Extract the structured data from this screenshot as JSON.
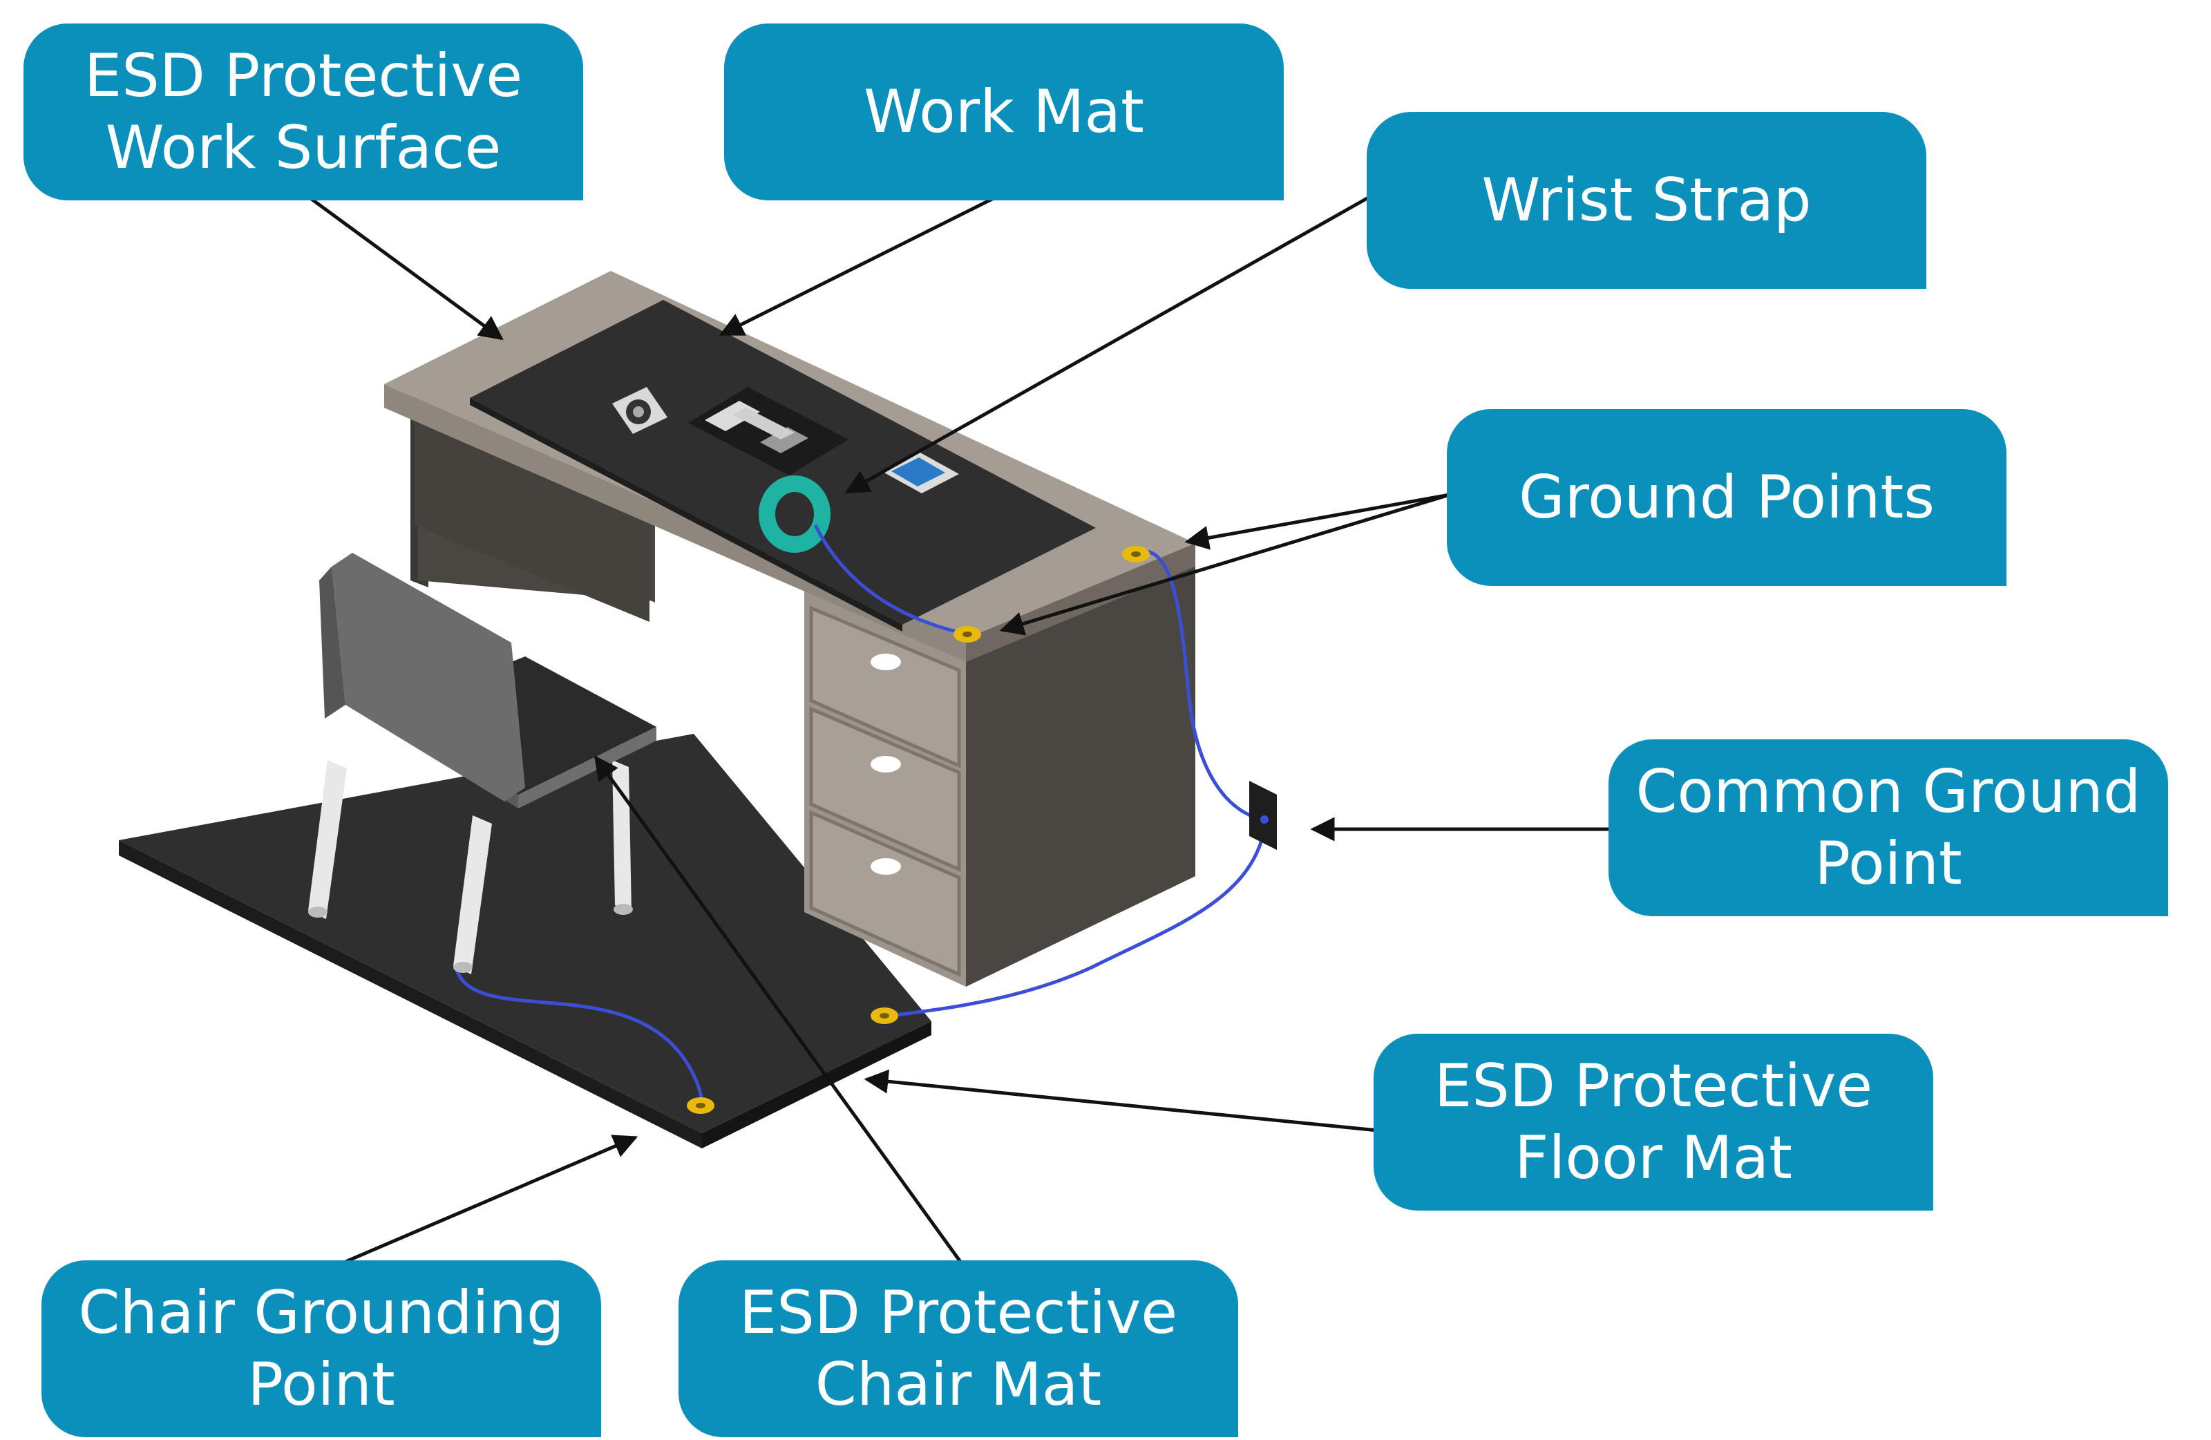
{
  "colors": {
    "callout_bg": "#0b8fbb",
    "callout_text": "#ffffff",
    "arrow": "#111111",
    "desk_top": "#a59d94",
    "desk_body": "#4a4742",
    "work_mat": "#2f2f2f",
    "floor_mat": "#2f2f2f",
    "ground_point": "#e8b90f",
    "ground_wire": "#3b4fd6",
    "wrist_strap": "#1fb3a3"
  },
  "labels": {
    "work_surface": {
      "line1": "ESD Protective",
      "line2": "Work Surface"
    },
    "work_mat": {
      "line1": "Work Mat"
    },
    "wrist_strap": {
      "line1": "Wrist Strap"
    },
    "ground_points": {
      "line1": "Ground Points"
    },
    "common_ground": {
      "line1": "Common Ground",
      "line2": "Point"
    },
    "floor_mat": {
      "line1": "ESD Protective",
      "line2": "Floor Mat"
    },
    "chair_grounding": {
      "line1": "Chair Grounding",
      "line2": "Point"
    },
    "chair_mat": {
      "line1": "ESD Protective",
      "line2": "Chair Mat"
    }
  },
  "icons": {
    "desk": "desk-icon",
    "chair": "chair-icon",
    "motherboard": "motherboard-icon",
    "cpu_fan": "fan-icon",
    "ssd": "ssd-icon",
    "wrist_strap": "wrist-strap-icon",
    "wall_plug": "ground-socket-icon"
  }
}
